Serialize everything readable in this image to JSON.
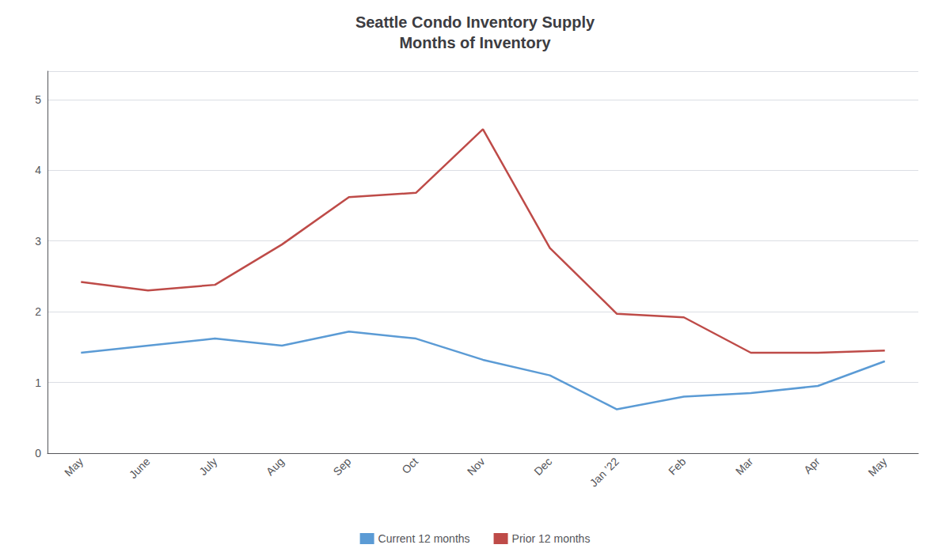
{
  "chart_data": {
    "type": "line",
    "title": "Seattle Condo Inventory Supply\nMonths of Inventory",
    "categories": [
      "May",
      "June",
      "July",
      "Aug",
      "Sep",
      "Oct",
      "Nov",
      "Dec",
      "Jan ’22",
      "Feb",
      "Mar",
      "Apr",
      "May"
    ],
    "series": [
      {
        "name": "Current 12 months",
        "color": "#5b9bd5",
        "values": [
          1.42,
          1.52,
          1.62,
          1.52,
          1.72,
          1.62,
          1.32,
          1.1,
          0.62,
          0.8,
          0.85,
          0.95,
          1.3
        ]
      },
      {
        "name": "Prior 12 months",
        "color": "#be4b48",
        "values": [
          2.42,
          2.3,
          2.38,
          2.95,
          3.62,
          3.68,
          4.58,
          2.9,
          1.97,
          1.92,
          1.42,
          1.42,
          1.45
        ]
      }
    ],
    "ylim": [
      0,
      5.4
    ],
    "yticks": [
      0,
      1,
      2,
      3,
      4,
      5
    ],
    "grid": true,
    "legend": "bottom"
  }
}
